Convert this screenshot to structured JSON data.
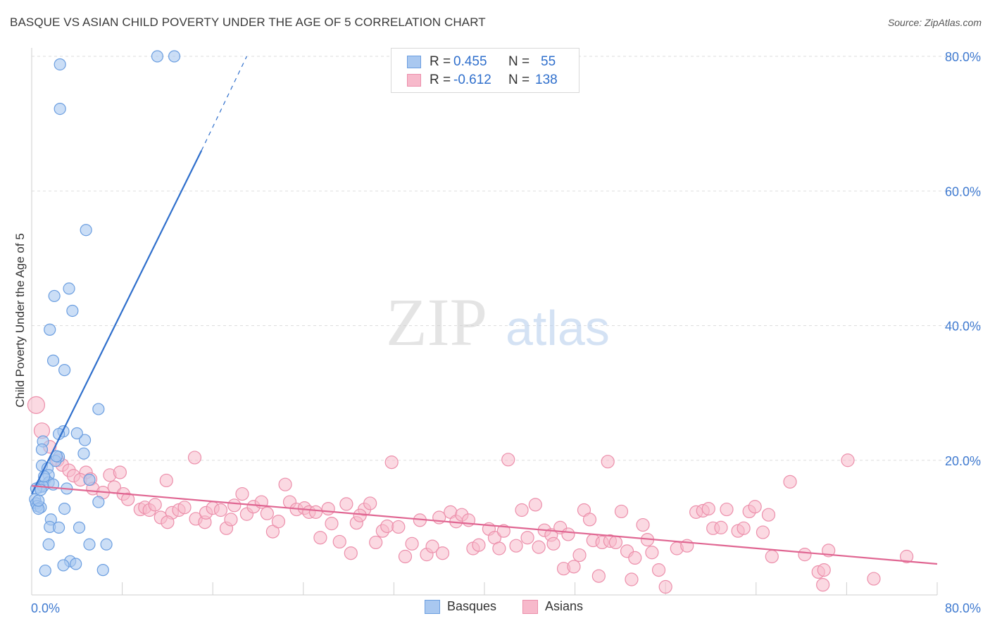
{
  "title": "BASQUE VS ASIAN CHILD POVERTY UNDER THE AGE OF 5 CORRELATION CHART",
  "source": "Source: ZipAtlas.com",
  "watermark": {
    "zip": "ZIP",
    "atlas": "atlas"
  },
  "legend": {
    "rows": [
      {
        "label": "R =",
        "r_value": "0.455",
        "n_label": "N =",
        "n_value": "55"
      },
      {
        "label": "R =",
        "r_value": "-0.612",
        "n_label": "N =",
        "n_value": "138"
      }
    ],
    "bottom": [
      "Basques",
      "Asians"
    ]
  },
  "colors": {
    "basque_fill": "#a9c8f0",
    "basque_stroke": "#6b9ee0",
    "basque_line": "#2f6fcc",
    "asian_fill": "#f7b9cb",
    "asian_stroke": "#ec8fab",
    "asian_line": "#e06692",
    "axis_label": "#3f7ad0",
    "grid": "#dddddd"
  },
  "chart_data": {
    "type": "scatter",
    "title": "BASQUE VS ASIAN CHILD POVERTY UNDER THE AGE OF 5 CORRELATION CHART",
    "xlabel": "",
    "ylabel": "Child Poverty Under the Age of 5",
    "xlim": [
      0,
      80
    ],
    "ylim": [
      0,
      80
    ],
    "x_tick_labels": [
      "0.0%",
      "80.0%"
    ],
    "y_tick_labels": [
      "20.0%",
      "40.0%",
      "60.0%",
      "80.0%"
    ],
    "y_ticks": [
      20,
      40,
      60,
      80
    ],
    "series": [
      {
        "name": "Basques",
        "r": 0.455,
        "n": 55,
        "trend": {
          "x": [
            0.0,
            15.0
          ],
          "y": [
            15.0,
            66.0
          ],
          "dashed_to": [
            19.0,
            80.0
          ]
        },
        "points": [
          [
            2.5,
            78.8
          ],
          [
            2.5,
            72.2
          ],
          [
            11.1,
            80.0
          ],
          [
            12.6,
            80.0
          ],
          [
            4.8,
            54.2
          ],
          [
            3.3,
            45.5
          ],
          [
            2.0,
            44.4
          ],
          [
            3.6,
            42.2
          ],
          [
            1.6,
            39.4
          ],
          [
            1.9,
            34.8
          ],
          [
            2.9,
            33.4
          ],
          [
            5.9,
            27.6
          ],
          [
            2.8,
            24.3
          ],
          [
            2.4,
            23.9
          ],
          [
            1.0,
            22.8
          ],
          [
            4.7,
            23.0
          ],
          [
            0.9,
            21.6
          ],
          [
            4.6,
            21.0
          ],
          [
            2.4,
            20.5
          ],
          [
            2.1,
            19.9
          ],
          [
            0.9,
            19.2
          ],
          [
            1.4,
            18.8
          ],
          [
            1.5,
            17.8
          ],
          [
            1.2,
            17.2
          ],
          [
            5.1,
            17.1
          ],
          [
            1.5,
            16.7
          ],
          [
            1.9,
            16.4
          ],
          [
            0.7,
            16.0
          ],
          [
            1.0,
            16.1
          ],
          [
            0.4,
            15.8
          ],
          [
            3.1,
            15.8
          ],
          [
            0.3,
            14.2
          ],
          [
            0.4,
            13.6
          ],
          [
            5.9,
            13.8
          ],
          [
            0.5,
            13.2
          ],
          [
            0.8,
            13.0
          ],
          [
            0.6,
            12.8
          ],
          [
            2.9,
            12.8
          ],
          [
            1.7,
            11.2
          ],
          [
            1.6,
            10.1
          ],
          [
            2.4,
            10.0
          ],
          [
            4.2,
            10.0
          ],
          [
            1.5,
            7.5
          ],
          [
            5.1,
            7.5
          ],
          [
            6.6,
            7.5
          ],
          [
            3.4,
            5.0
          ],
          [
            2.8,
            4.4
          ],
          [
            3.9,
            4.6
          ],
          [
            1.2,
            3.6
          ],
          [
            6.3,
            3.7
          ],
          [
            0.8,
            15.6
          ],
          [
            0.6,
            14.0
          ],
          [
            1.1,
            17.6
          ],
          [
            2.2,
            20.6
          ],
          [
            4.0,
            24.0
          ]
        ]
      },
      {
        "name": "Asians",
        "r": -0.612,
        "n": 138,
        "trend": {
          "x": [
            0.0,
            80.0
          ],
          "y": [
            16.2,
            4.6
          ]
        },
        "points": [
          [
            0.4,
            28.2
          ],
          [
            0.9,
            24.4
          ],
          [
            1.6,
            22.0
          ],
          [
            2.3,
            20.0
          ],
          [
            2.7,
            19.3
          ],
          [
            3.3,
            18.5
          ],
          [
            4.8,
            18.2
          ],
          [
            3.7,
            17.7
          ],
          [
            4.3,
            17.1
          ],
          [
            5.2,
            17.2
          ],
          [
            6.9,
            17.8
          ],
          [
            7.8,
            18.2
          ],
          [
            7.3,
            16.0
          ],
          [
            5.4,
            15.8
          ],
          [
            6.3,
            15.2
          ],
          [
            8.1,
            15.0
          ],
          [
            8.5,
            14.2
          ],
          [
            11.9,
            17.0
          ],
          [
            14.4,
            20.4
          ],
          [
            9.6,
            12.7
          ],
          [
            10.0,
            13.0
          ],
          [
            10.4,
            12.6
          ],
          [
            10.9,
            13.4
          ],
          [
            11.4,
            11.5
          ],
          [
            12.4,
            12.2
          ],
          [
            13.0,
            12.6
          ],
          [
            12.0,
            10.8
          ],
          [
            13.5,
            13.0
          ],
          [
            14.5,
            11.3
          ],
          [
            15.3,
            10.8
          ],
          [
            15.4,
            12.2
          ],
          [
            16.0,
            12.9
          ],
          [
            16.7,
            12.6
          ],
          [
            17.2,
            9.9
          ],
          [
            17.6,
            11.2
          ],
          [
            17.9,
            13.3
          ],
          [
            18.6,
            15.0
          ],
          [
            19.0,
            12.0
          ],
          [
            19.6,
            13.1
          ],
          [
            20.3,
            13.8
          ],
          [
            20.8,
            12.1
          ],
          [
            21.3,
            9.4
          ],
          [
            21.8,
            10.9
          ],
          [
            22.4,
            16.4
          ],
          [
            22.8,
            13.8
          ],
          [
            23.4,
            12.7
          ],
          [
            24.1,
            12.9
          ],
          [
            24.5,
            12.3
          ],
          [
            25.1,
            12.3
          ],
          [
            25.5,
            8.5
          ],
          [
            26.2,
            12.8
          ],
          [
            26.5,
            10.6
          ],
          [
            27.2,
            7.9
          ],
          [
            27.8,
            13.5
          ],
          [
            28.2,
            6.2
          ],
          [
            28.7,
            10.7
          ],
          [
            29.4,
            12.7
          ],
          [
            29.9,
            13.6
          ],
          [
            30.4,
            7.8
          ],
          [
            31.0,
            9.5
          ],
          [
            31.4,
            10.2
          ],
          [
            31.8,
            19.7
          ],
          [
            32.4,
            10.1
          ],
          [
            33.0,
            5.7
          ],
          [
            33.6,
            7.6
          ],
          [
            34.3,
            11.1
          ],
          [
            34.9,
            6.0
          ],
          [
            35.4,
            7.2
          ],
          [
            36.0,
            11.5
          ],
          [
            36.3,
            6.2
          ],
          [
            37.0,
            12.3
          ],
          [
            37.5,
            10.9
          ],
          [
            38.0,
            11.9
          ],
          [
            38.6,
            11.1
          ],
          [
            39.0,
            6.9
          ],
          [
            39.5,
            7.4
          ],
          [
            40.4,
            9.8
          ],
          [
            40.9,
            8.5
          ],
          [
            41.3,
            6.9
          ],
          [
            41.7,
            9.5
          ],
          [
            42.1,
            20.1
          ],
          [
            42.8,
            7.3
          ],
          [
            43.3,
            12.6
          ],
          [
            43.8,
            8.5
          ],
          [
            44.5,
            13.4
          ],
          [
            44.8,
            7.1
          ],
          [
            45.3,
            9.6
          ],
          [
            45.9,
            8.9
          ],
          [
            46.1,
            7.6
          ],
          [
            46.7,
            10.0
          ],
          [
            47.0,
            3.9
          ],
          [
            47.4,
            9.0
          ],
          [
            47.9,
            4.2
          ],
          [
            48.4,
            5.9
          ],
          [
            48.8,
            12.6
          ],
          [
            49.3,
            11.2
          ],
          [
            49.6,
            8.1
          ],
          [
            50.1,
            2.8
          ],
          [
            50.4,
            7.8
          ],
          [
            50.9,
            19.8
          ],
          [
            51.1,
            8.0
          ],
          [
            51.6,
            7.8
          ],
          [
            52.1,
            12.4
          ],
          [
            52.6,
            6.5
          ],
          [
            53.0,
            2.3
          ],
          [
            53.3,
            5.5
          ],
          [
            54.0,
            10.4
          ],
          [
            54.4,
            8.2
          ],
          [
            54.8,
            6.3
          ],
          [
            55.4,
            3.7
          ],
          [
            56.0,
            1.2
          ],
          [
            57.0,
            6.9
          ],
          [
            57.9,
            7.3
          ],
          [
            58.7,
            12.3
          ],
          [
            59.3,
            12.5
          ],
          [
            59.8,
            12.8
          ],
          [
            60.2,
            9.9
          ],
          [
            60.9,
            10.0
          ],
          [
            61.4,
            12.7
          ],
          [
            62.4,
            9.5
          ],
          [
            62.9,
            9.9
          ],
          [
            63.4,
            12.4
          ],
          [
            63.9,
            13.1
          ],
          [
            64.6,
            9.3
          ],
          [
            65.1,
            11.9
          ],
          [
            65.4,
            5.7
          ],
          [
            67.0,
            16.8
          ],
          [
            68.3,
            6.0
          ],
          [
            69.5,
            3.4
          ],
          [
            69.9,
            1.5
          ],
          [
            70.0,
            3.7
          ],
          [
            70.4,
            6.6
          ],
          [
            72.1,
            20.0
          ],
          [
            74.4,
            2.4
          ],
          [
            77.3,
            5.7
          ],
          [
            29.0,
            11.8
          ]
        ]
      }
    ]
  }
}
